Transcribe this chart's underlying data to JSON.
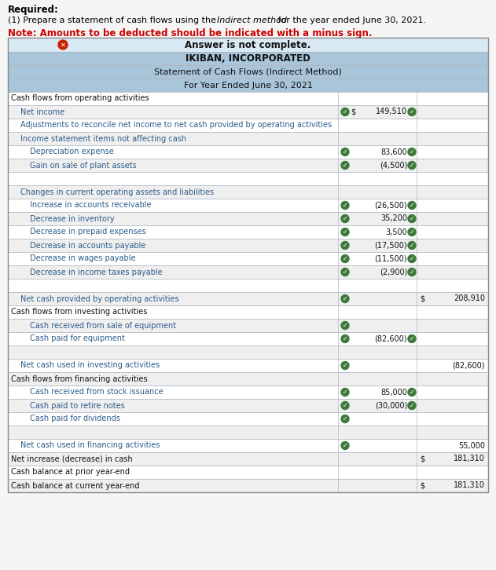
{
  "required_text1": "Required:",
  "required_text2": "(1) Prepare a statement of cash flows using the ",
  "required_italic": "Indirect method",
  "required_text3": " for the year ended June 30, 2021.",
  "required_note": "Note: Amounts to be deducted should be indicated with a minus sign.",
  "answer_banner": "Answer is not complete.",
  "company": "IKIBAN, INCORPORATED",
  "statement": "Statement of Cash Flows (Indirect Method)",
  "period": "For Year Ended June 30, 2021",
  "header_bg": "#a8c5da",
  "banner_bg": "#daeaf5",
  "row_white": "#ffffff",
  "row_gray": "#efefef",
  "border_color": "#b0b8c0",
  "check_color": "#3d7a3d",
  "text_blue": "#2a5c8a",
  "rows": [
    {
      "label": "Cash flows from operating activities",
      "indent": 0,
      "col1": "",
      "col1_check": false,
      "col1_dollar": false,
      "col1_after_check": false,
      "col2": "",
      "col2_dollar": false,
      "col2_check": false
    },
    {
      "label": "Net income",
      "indent": 1,
      "col1": "149,510",
      "col1_check": true,
      "col1_dollar": true,
      "col1_after_check": true,
      "col2": "",
      "col2_dollar": false,
      "col2_check": false
    },
    {
      "label": "Adjustments to reconcile net income to net cash provided by operating activities",
      "indent": 1,
      "col1": "",
      "col1_check": false,
      "col1_dollar": false,
      "col1_after_check": false,
      "col2": "",
      "col2_dollar": false,
      "col2_check": false
    },
    {
      "label": "Income statement items not affecting cash",
      "indent": 1,
      "col1": "",
      "col1_check": false,
      "col1_dollar": false,
      "col1_after_check": false,
      "col2": "",
      "col2_dollar": false,
      "col2_check": false
    },
    {
      "label": "Depreciation expense",
      "indent": 2,
      "col1": "83,600",
      "col1_check": true,
      "col1_dollar": false,
      "col1_after_check": true,
      "col2": "",
      "col2_dollar": false,
      "col2_check": false
    },
    {
      "label": "Gain on sale of plant assets",
      "indent": 2,
      "col1": "(4,500)",
      "col1_check": true,
      "col1_dollar": false,
      "col1_after_check": true,
      "col2": "",
      "col2_dollar": false,
      "col2_check": false
    },
    {
      "label": "",
      "indent": 0,
      "col1": "",
      "col1_check": false,
      "col1_dollar": false,
      "col1_after_check": false,
      "col2": "",
      "col2_dollar": false,
      "col2_check": false
    },
    {
      "label": "Changes in current operating assets and liabilities",
      "indent": 1,
      "col1": "",
      "col1_check": false,
      "col1_dollar": false,
      "col1_after_check": false,
      "col2": "",
      "col2_dollar": false,
      "col2_check": false
    },
    {
      "label": "Increase in accounts receivable",
      "indent": 2,
      "col1": "(26,500)",
      "col1_check": true,
      "col1_dollar": false,
      "col1_after_check": true,
      "col2": "",
      "col2_dollar": false,
      "col2_check": false
    },
    {
      "label": "Decrease in inventory",
      "indent": 2,
      "col1": "35,200",
      "col1_check": true,
      "col1_dollar": false,
      "col1_after_check": true,
      "col2": "",
      "col2_dollar": false,
      "col2_check": false
    },
    {
      "label": "Decrease in prepaid expenses",
      "indent": 2,
      "col1": "3,500",
      "col1_check": true,
      "col1_dollar": false,
      "col1_after_check": true,
      "col2": "",
      "col2_dollar": false,
      "col2_check": false
    },
    {
      "label": "Decrease in accounts payable",
      "indent": 2,
      "col1": "(17,500)",
      "col1_check": true,
      "col1_dollar": false,
      "col1_after_check": true,
      "col2": "",
      "col2_dollar": false,
      "col2_check": false
    },
    {
      "label": "Decrease in wages payable",
      "indent": 2,
      "col1": "(11,500)",
      "col1_check": true,
      "col1_dollar": false,
      "col1_after_check": true,
      "col2": "",
      "col2_dollar": false,
      "col2_check": false
    },
    {
      "label": "Decrease in income taxes payable",
      "indent": 2,
      "col1": "(2,900)",
      "col1_check": true,
      "col1_dollar": false,
      "col1_after_check": true,
      "col2": "",
      "col2_dollar": false,
      "col2_check": false
    },
    {
      "label": "",
      "indent": 0,
      "col1": "",
      "col1_check": false,
      "col1_dollar": false,
      "col1_after_check": false,
      "col2": "",
      "col2_dollar": false,
      "col2_check": false
    },
    {
      "label": "Net cash provided by operating activities",
      "indent": 1,
      "col1": "",
      "col1_check": true,
      "col1_dollar": false,
      "col1_after_check": false,
      "col2": "208,910",
      "col2_dollar": true,
      "col2_check": false
    },
    {
      "label": "Cash flows from investing activities",
      "indent": 0,
      "col1": "",
      "col1_check": false,
      "col1_dollar": false,
      "col1_after_check": false,
      "col2": "",
      "col2_dollar": false,
      "col2_check": false
    },
    {
      "label": "Cash received from sale of equipment",
      "indent": 2,
      "col1": "",
      "col1_check": true,
      "col1_dollar": false,
      "col1_after_check": false,
      "col2": "",
      "col2_dollar": false,
      "col2_check": false
    },
    {
      "label": "Cash paid for equipment",
      "indent": 2,
      "col1": "(82,600)",
      "col1_check": true,
      "col1_dollar": false,
      "col1_after_check": true,
      "col2": "",
      "col2_dollar": false,
      "col2_check": false
    },
    {
      "label": "",
      "indent": 0,
      "col1": "",
      "col1_check": false,
      "col1_dollar": false,
      "col1_after_check": false,
      "col2": "",
      "col2_dollar": false,
      "col2_check": false
    },
    {
      "label": "Net cash used in investing activities",
      "indent": 1,
      "col1": "",
      "col1_check": true,
      "col1_dollar": false,
      "col1_after_check": false,
      "col2": "(82,600)",
      "col2_dollar": false,
      "col2_check": false
    },
    {
      "label": "Cash flows from financing activities",
      "indent": 0,
      "col1": "",
      "col1_check": false,
      "col1_dollar": false,
      "col1_after_check": false,
      "col2": "",
      "col2_dollar": false,
      "col2_check": false
    },
    {
      "label": "Cash received from stock issuance",
      "indent": 2,
      "col1": "85,000",
      "col1_check": true,
      "col1_dollar": false,
      "col1_after_check": true,
      "col2": "",
      "col2_dollar": false,
      "col2_check": false
    },
    {
      "label": "Cash paid to retire notes",
      "indent": 2,
      "col1": "(30,000)",
      "col1_check": true,
      "col1_dollar": false,
      "col1_after_check": true,
      "col2": "",
      "col2_dollar": false,
      "col2_check": false
    },
    {
      "label": "Cash paid for dividends",
      "indent": 2,
      "col1": "",
      "col1_check": true,
      "col1_dollar": false,
      "col1_after_check": false,
      "col2": "",
      "col2_dollar": false,
      "col2_check": false
    },
    {
      "label": "",
      "indent": 0,
      "col1": "",
      "col1_check": false,
      "col1_dollar": false,
      "col1_after_check": false,
      "col2": "",
      "col2_dollar": false,
      "col2_check": false
    },
    {
      "label": "Net cash used in financing activities",
      "indent": 1,
      "col1": "",
      "col1_check": true,
      "col1_dollar": false,
      "col1_after_check": false,
      "col2": "55,000",
      "col2_dollar": false,
      "col2_check": false
    },
    {
      "label": "Net increase (decrease) in cash",
      "indent": 0,
      "col1": "",
      "col1_check": false,
      "col1_dollar": false,
      "col1_after_check": false,
      "col2": "181,310",
      "col2_dollar": true,
      "col2_check": false
    },
    {
      "label": "Cash balance at prior year-end",
      "indent": 0,
      "col1": "",
      "col1_check": false,
      "col1_dollar": false,
      "col1_after_check": false,
      "col2": "",
      "col2_dollar": false,
      "col2_check": false
    },
    {
      "label": "Cash balance at current year-end",
      "indent": 0,
      "col1": "",
      "col1_check": false,
      "col1_dollar": false,
      "col1_after_check": false,
      "col2": "181,310",
      "col2_dollar": true,
      "col2_check": false
    }
  ]
}
